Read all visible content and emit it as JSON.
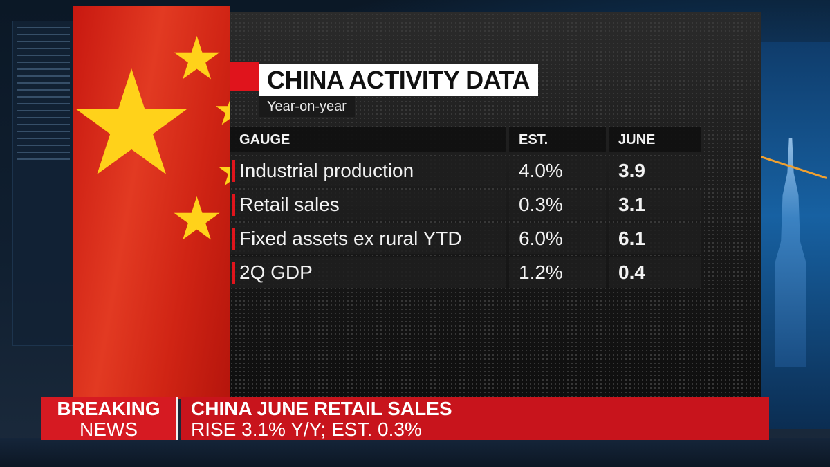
{
  "graphic": {
    "title": "CHINA ACTIVITY DATA",
    "subtitle": "Year-on-year",
    "columns": [
      "GAUGE",
      "EST.",
      "JUNE"
    ],
    "rows": [
      {
        "gauge": "Industrial production",
        "est": "4.0%",
        "june": "3.9"
      },
      {
        "gauge": "Retail sales",
        "est": "0.3%",
        "june": "3.1"
      },
      {
        "gauge": "Fixed assets ex rural YTD",
        "est": "6.0%",
        "june": "6.1"
      },
      {
        "gauge": "2Q GDP",
        "est": "1.2%",
        "june": "0.4"
      }
    ]
  },
  "ticker": {
    "label_line1": "BREAKING",
    "label_line2": "NEWS",
    "headline_line1": "CHINA JUNE RETAIL SALES",
    "headline_line2": "RISE 3.1% Y/Y; EST. 0.3%"
  },
  "colors": {
    "accent_red": "#e0141c",
    "flag_red": "#d02414",
    "flag_star": "#ffd21a"
  }
}
